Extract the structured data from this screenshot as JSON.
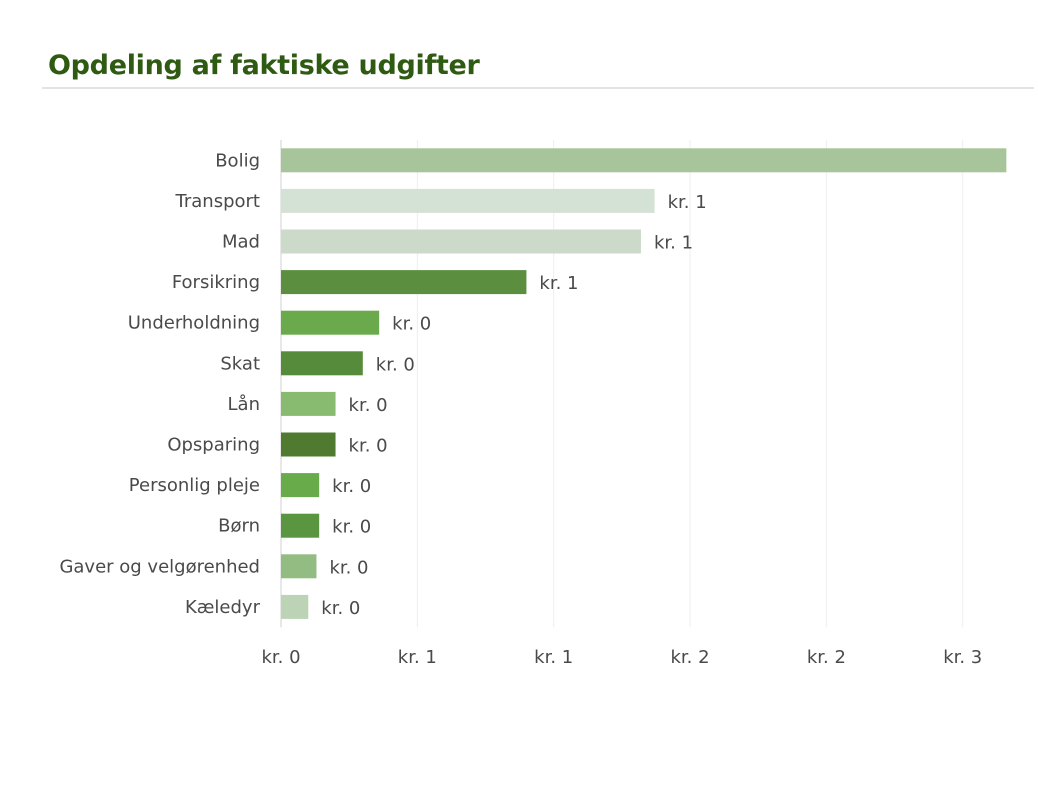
{
  "chart_data": {
    "type": "bar",
    "orientation": "horizontal",
    "title": "Opdeling af faktiske udgifter",
    "xlabel": "",
    "ylabel": "",
    "xlim": [
      0,
      2.6
    ],
    "grid": true,
    "legend": "none",
    "categories": [
      "Bolig",
      "Transport",
      "Mad",
      "Forsikring",
      "Underholdning",
      "Skat",
      "Lån",
      "Opsparing",
      "Personlig pleje",
      "Børn",
      "Gaver og velgørenhed",
      "Kæledyr"
    ],
    "values": [
      2.66,
      1.37,
      1.32,
      0.9,
      0.36,
      0.3,
      0.2,
      0.2,
      0.14,
      0.14,
      0.13,
      0.1
    ],
    "data_labels": [
      "",
      "kr. 1",
      "kr. 1",
      "kr. 1",
      "kr. 0",
      "kr. 0",
      "kr. 0",
      "kr. 0",
      "kr. 0",
      "kr. 0",
      "kr. 0",
      "kr. 0"
    ],
    "colors": [
      "#a7c49a",
      "#d4e2d5",
      "#cbdac9",
      "#5b8f3f",
      "#6aaa4c",
      "#568b3c",
      "#88bb6f",
      "#4f7a30",
      "#68ab4a",
      "#5a963f",
      "#93bc83",
      "#bcd3b6"
    ],
    "x_ticks": [
      0,
      0.5,
      1,
      1.5,
      2,
      2.5
    ],
    "x_tick_labels": [
      "kr. 0",
      "kr. 1",
      "kr. 1",
      "kr. 2",
      "kr. 2",
      "kr. 3"
    ]
  }
}
